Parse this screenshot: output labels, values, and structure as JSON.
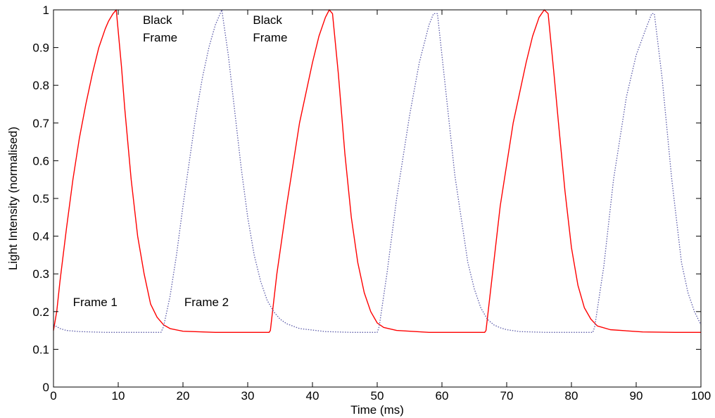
{
  "chart_data": {
    "type": "line",
    "title": "",
    "xlabel": "Time (ms)",
    "ylabel": "Light Intensity (normalised)",
    "xlim": [
      0,
      100
    ],
    "ylim": [
      0,
      1
    ],
    "xticks": [
      0,
      10,
      20,
      30,
      40,
      50,
      60,
      70,
      80,
      90,
      100
    ],
    "yticks": [
      0,
      0.1,
      0.2,
      0.3,
      0.4,
      0.5,
      0.6,
      0.7,
      0.8,
      0.9,
      1
    ],
    "grid": false,
    "series": [
      {
        "color": "#ff0000",
        "style": "solid",
        "x": [
          0,
          0.5,
          1,
          2,
          3,
          4,
          5,
          6,
          7,
          8,
          8.5,
          9.2,
          9.7,
          10.5,
          11,
          12,
          13,
          14,
          15,
          16,
          17,
          18,
          20,
          25,
          30,
          33.3,
          33.5,
          34.5,
          36,
          38,
          40,
          41,
          42,
          42.6,
          43.1,
          44,
          45,
          46,
          47,
          48,
          49,
          50,
          51,
          53,
          58,
          63,
          66.6,
          66.8,
          67.8,
          69,
          71,
          73,
          74,
          75,
          75.8,
          76.4,
          77.3,
          78,
          79,
          80,
          81,
          82,
          83,
          84,
          86,
          91,
          96,
          100
        ],
        "y": [
          0.15,
          0.2,
          0.28,
          0.42,
          0.55,
          0.66,
          0.75,
          0.83,
          0.9,
          0.95,
          0.97,
          0.99,
          1.0,
          0.85,
          0.74,
          0.55,
          0.4,
          0.3,
          0.22,
          0.185,
          0.165,
          0.155,
          0.148,
          0.145,
          0.145,
          0.145,
          0.15,
          0.3,
          0.48,
          0.7,
          0.86,
          0.93,
          0.98,
          1.0,
          0.99,
          0.83,
          0.62,
          0.45,
          0.33,
          0.25,
          0.2,
          0.17,
          0.158,
          0.15,
          0.145,
          0.145,
          0.145,
          0.15,
          0.3,
          0.48,
          0.7,
          0.86,
          0.93,
          0.98,
          1.0,
          0.99,
          0.83,
          0.7,
          0.52,
          0.37,
          0.27,
          0.21,
          0.18,
          0.162,
          0.152,
          0.146,
          0.145,
          0.145
        ]
      },
      {
        "color": "#5a5aa8",
        "style": "dotted",
        "x": [
          0,
          1,
          2,
          4,
          8,
          12,
          16.6,
          17,
          18,
          19,
          20,
          21,
          22,
          23,
          24,
          25,
          26,
          27,
          28,
          29,
          30,
          31,
          32,
          33,
          34,
          35,
          36,
          38,
          42,
          46,
          50,
          50.3,
          51.5,
          53,
          55,
          56.5,
          58,
          58.7,
          59.3,
          60.5,
          62,
          64,
          65,
          66,
          67,
          68,
          69,
          70,
          72,
          76,
          80,
          83.3,
          83.6,
          85,
          86.5,
          88.5,
          90,
          91.5,
          92.4,
          92.8,
          94,
          95.5,
          97,
          98,
          99,
          100
        ],
        "y": [
          0.165,
          0.155,
          0.15,
          0.147,
          0.145,
          0.145,
          0.145,
          0.16,
          0.24,
          0.35,
          0.48,
          0.6,
          0.72,
          0.82,
          0.9,
          0.96,
          1.0,
          0.88,
          0.73,
          0.58,
          0.45,
          0.35,
          0.28,
          0.23,
          0.2,
          0.18,
          0.168,
          0.155,
          0.147,
          0.145,
          0.145,
          0.16,
          0.3,
          0.5,
          0.72,
          0.86,
          0.96,
          0.99,
          0.99,
          0.8,
          0.56,
          0.33,
          0.26,
          0.21,
          0.18,
          0.165,
          0.157,
          0.152,
          0.147,
          0.145,
          0.145,
          0.145,
          0.16,
          0.32,
          0.55,
          0.77,
          0.88,
          0.95,
          0.99,
          0.99,
          0.82,
          0.55,
          0.33,
          0.25,
          0.2,
          0.165
        ]
      }
    ],
    "annotations": [
      {
        "text": "Black",
        "x": 13.8,
        "y": 0.963
      },
      {
        "text": "Frame",
        "x": 13.8,
        "y": 0.916
      },
      {
        "text": "Black",
        "x": 30.8,
        "y": 0.963
      },
      {
        "text": "Frame",
        "x": 30.8,
        "y": 0.916
      },
      {
        "text": "Frame 1",
        "x": 3.0,
        "y": 0.215
      },
      {
        "text": "Frame 2",
        "x": 20.2,
        "y": 0.215
      }
    ]
  }
}
